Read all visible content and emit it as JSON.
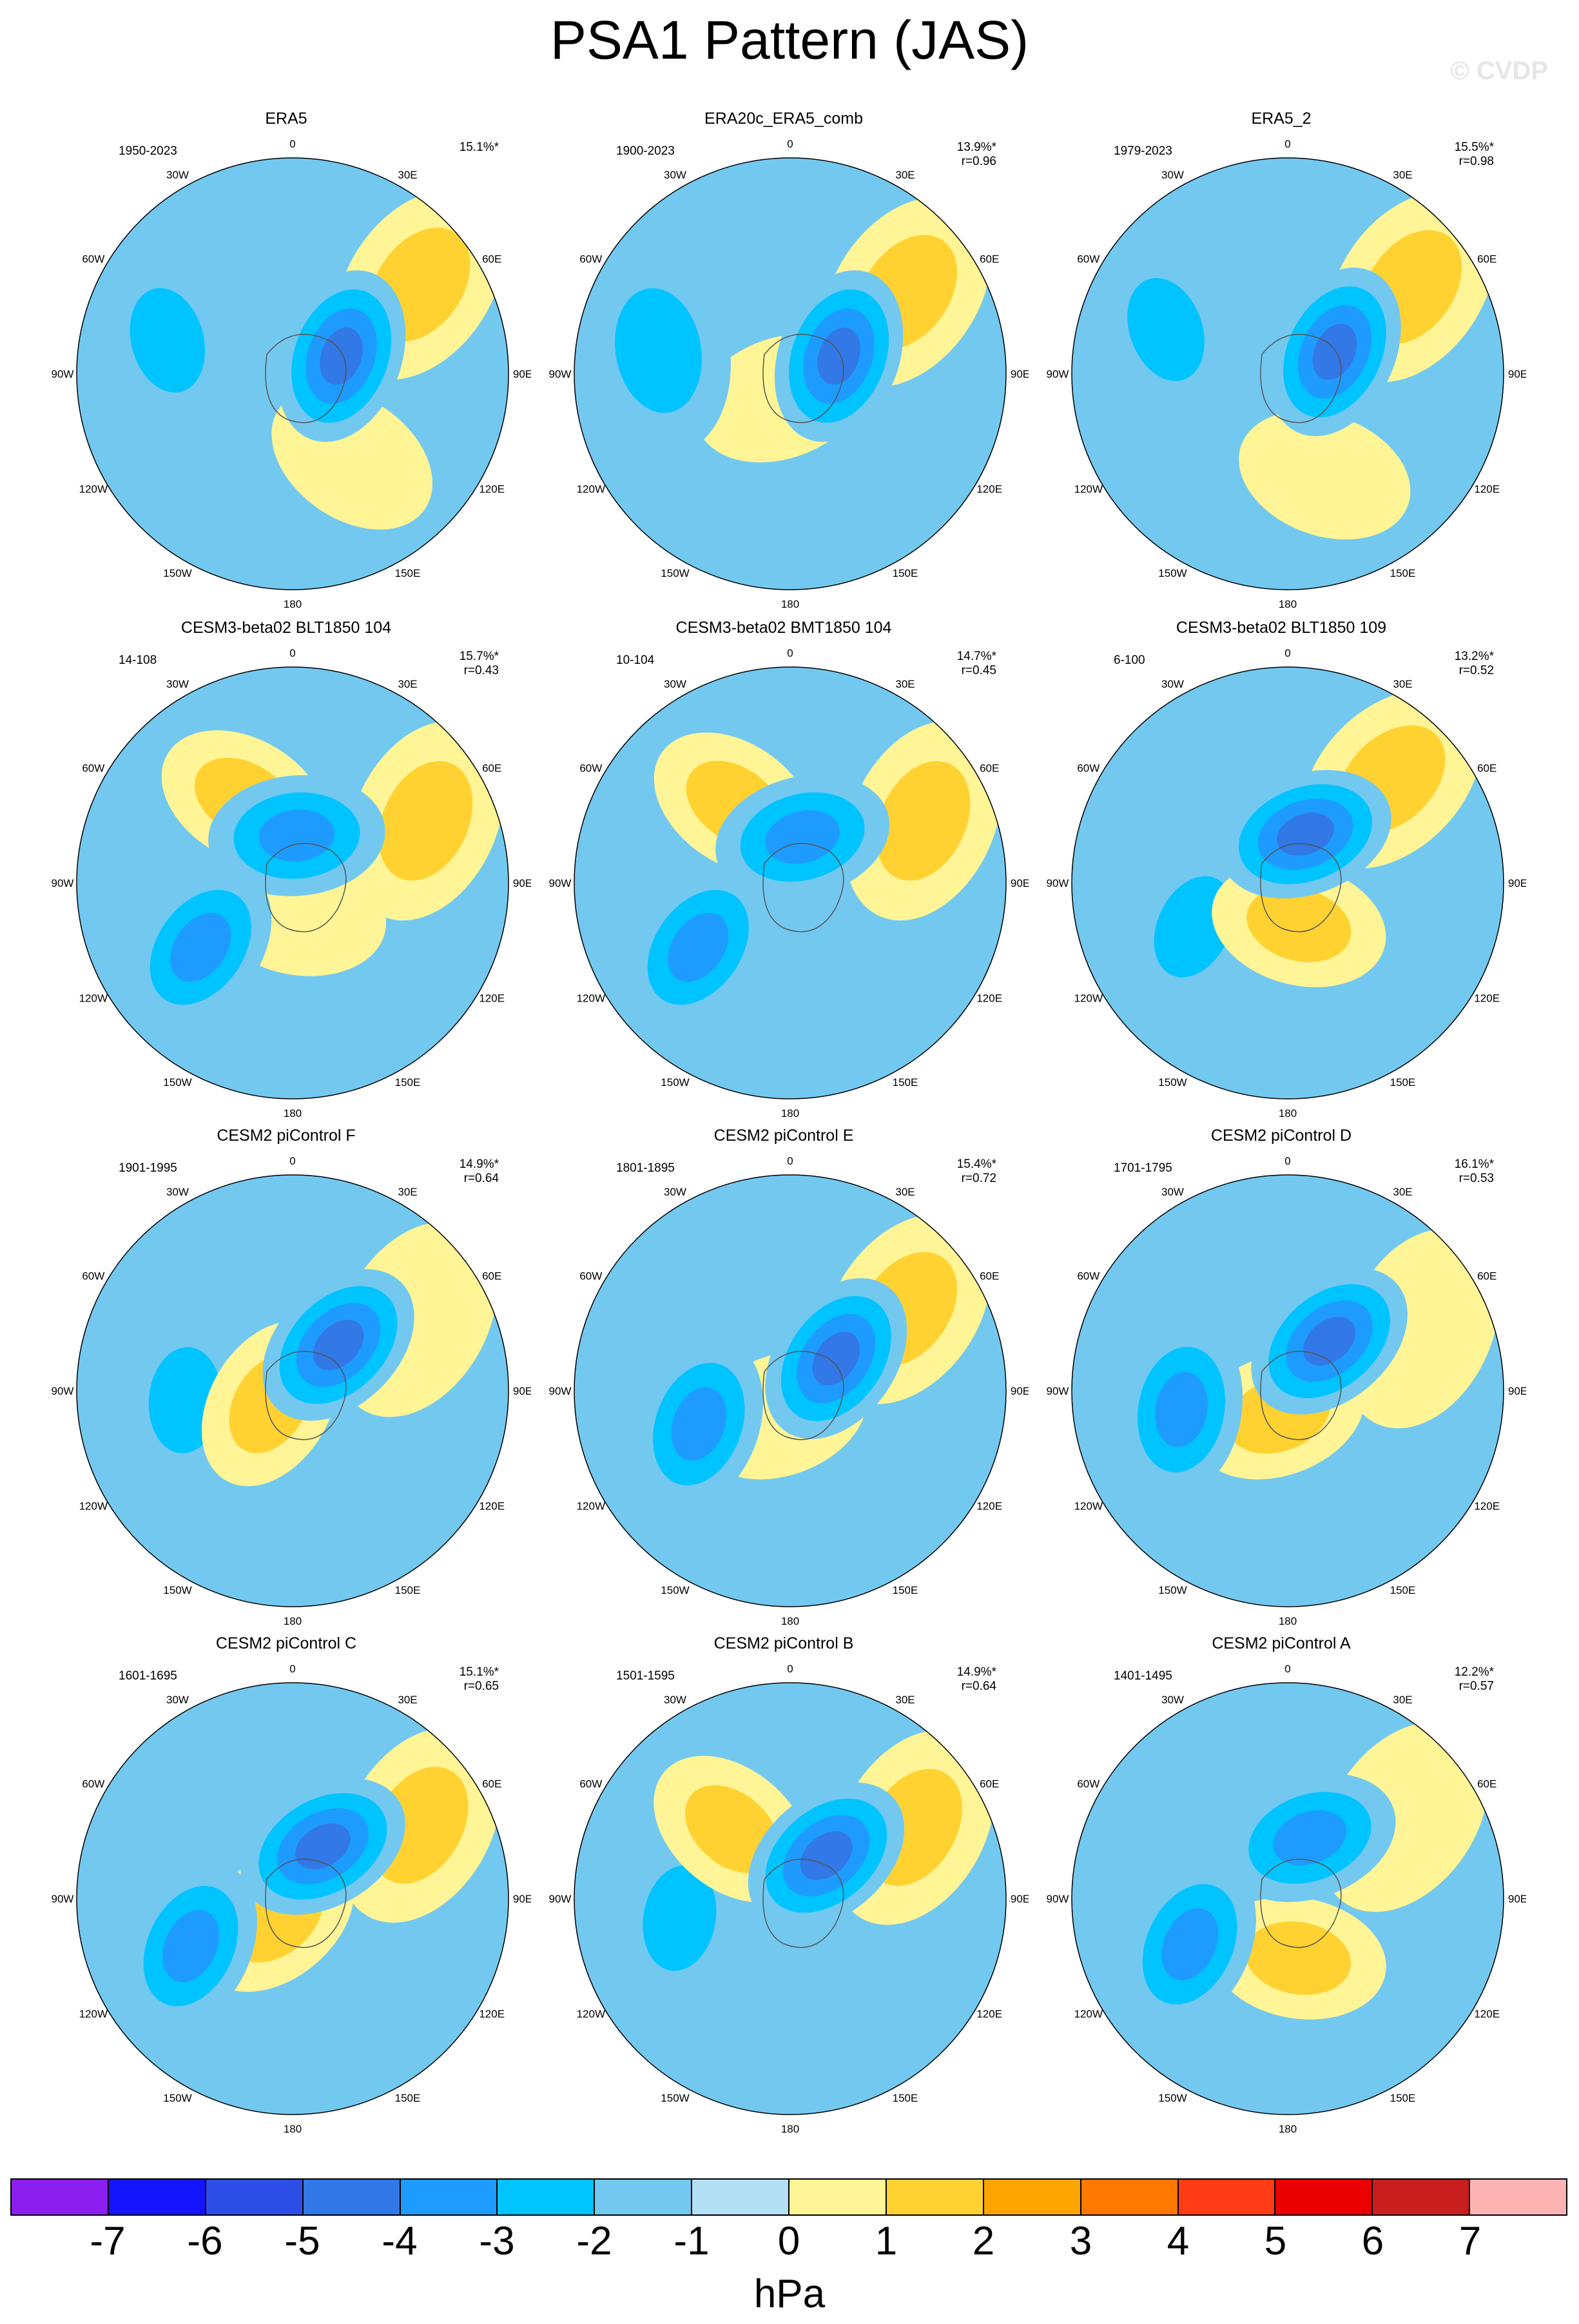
{
  "title": "PSA1 Pattern (JAS)",
  "watermark": "© CVDP",
  "longitude_labels": [
    "0",
    "30E",
    "60E",
    "90E",
    "120E",
    "150E",
    "180",
    "150W",
    "120W",
    "90W",
    "60W",
    "30W"
  ],
  "panels": [
    {
      "title": "ERA5",
      "period": "1950-2023",
      "variance": "15.1%*",
      "pattern_corr": "",
      "centers": [
        {
          "lon": -110,
          "r": 0.24,
          "v": -4
        },
        {
          "lon": -125,
          "r": 0.72,
          "v": 2
        },
        {
          "lon": 105,
          "r": 0.6,
          "v": -2
        },
        {
          "lon": -35,
          "r": 0.48,
          "v": 1
        }
      ]
    },
    {
      "title": "ERA20c_ERA5_comb",
      "period": "1900-2023",
      "variance": "13.9%*",
      "pattern_corr": "r=0.96",
      "centers": [
        {
          "lon": -110,
          "r": 0.24,
          "v": -4
        },
        {
          "lon": -125,
          "r": 0.66,
          "v": 2
        },
        {
          "lon": 100,
          "r": 0.62,
          "v": -2
        },
        {
          "lon": 20,
          "r": 0.12,
          "v": 1
        }
      ]
    },
    {
      "title": "ERA5_2",
      "period": "1979-2023",
      "variance": "15.5%*",
      "pattern_corr": "r=0.98",
      "centers": [
        {
          "lon": -115,
          "r": 0.24,
          "v": -4
        },
        {
          "lon": -125,
          "r": 0.7,
          "v": 2
        },
        {
          "lon": 110,
          "r": 0.6,
          "v": -2
        },
        {
          "lon": -20,
          "r": 0.5,
          "v": 1
        }
      ]
    },
    {
      "title": "CESM3-beta02 BLT1850 104",
      "period": "14-108",
      "variance": "15.7%*",
      "pattern_corr": "r=0.43",
      "centers": [
        {
          "lon": -175,
          "r": 0.22,
          "v": -3
        },
        {
          "lon": 55,
          "r": 0.52,
          "v": -3
        },
        {
          "lon": -115,
          "r": 0.68,
          "v": 2
        },
        {
          "lon": 150,
          "r": 0.45,
          "v": 2
        },
        {
          "lon": -10,
          "r": 0.15,
          "v": 1
        }
      ]
    },
    {
      "title": "CESM3-beta02 BMT1850 104",
      "period": "10-104",
      "variance": "14.7%*",
      "pattern_corr": "r=0.45",
      "centers": [
        {
          "lon": -165,
          "r": 0.22,
          "v": -3
        },
        {
          "lon": 55,
          "r": 0.52,
          "v": -3
        },
        {
          "lon": -115,
          "r": 0.68,
          "v": 2
        },
        {
          "lon": 145,
          "r": 0.45,
          "v": 2
        }
      ]
    },
    {
      "title": "CESM3-beta02 BLT1850 109",
      "period": "6-100",
      "variance": "13.2%*",
      "pattern_corr": "r=0.52",
      "centers": [
        {
          "lon": -160,
          "r": 0.24,
          "v": -4
        },
        {
          "lon": 65,
          "r": 0.48,
          "v": -2
        },
        {
          "lon": -135,
          "r": 0.68,
          "v": 2
        },
        {
          "lon": -15,
          "r": 0.2,
          "v": 2
        }
      ]
    },
    {
      "title": "CESM2 piControl F",
      "period": "1901-1995",
      "variance": "14.9%*",
      "pattern_corr": "r=0.64",
      "centers": [
        {
          "lon": -135,
          "r": 0.3,
          "v": -4
        },
        {
          "lon": 85,
          "r": 0.5,
          "v": -2
        },
        {
          "lon": -120,
          "r": 0.66,
          "v": 1
        },
        {
          "lon": 60,
          "r": 0.12,
          "v": 2
        }
      ]
    },
    {
      "title": "CESM2 piControl E",
      "period": "1801-1895",
      "variance": "15.4%*",
      "pattern_corr": "r=0.72",
      "centers": [
        {
          "lon": -125,
          "r": 0.26,
          "v": -4
        },
        {
          "lon": 70,
          "r": 0.45,
          "v": -3
        },
        {
          "lon": -125,
          "r": 0.66,
          "v": 2
        },
        {
          "lon": 20,
          "r": 0.12,
          "v": 1
        }
      ]
    },
    {
      "title": "CESM2 piControl D",
      "period": "1701-1795",
      "variance": "16.1%*",
      "pattern_corr": "r=0.53",
      "centers": [
        {
          "lon": -140,
          "r": 0.3,
          "v": -4
        },
        {
          "lon": 80,
          "r": 0.5,
          "v": -3
        },
        {
          "lon": 20,
          "r": 0.12,
          "v": 2
        },
        {
          "lon": -115,
          "r": 0.68,
          "v": 1
        }
      ]
    },
    {
      "title": "CESM2 piControl C",
      "period": "1601-1695",
      "variance": "15.1%*",
      "pattern_corr": "r=0.65",
      "centers": [
        {
          "lon": -150,
          "r": 0.28,
          "v": -4
        },
        {
          "lon": 65,
          "r": 0.52,
          "v": -3
        },
        {
          "lon": -120,
          "r": 0.68,
          "v": 2
        },
        {
          "lon": 40,
          "r": 0.12,
          "v": 2
        }
      ]
    },
    {
      "title": "CESM2 piControl B",
      "period": "1501-1595",
      "variance": "14.9%*",
      "pattern_corr": "r=0.64",
      "centers": [
        {
          "lon": -140,
          "r": 0.26,
          "v": -4
        },
        {
          "lon": 80,
          "r": 0.52,
          "v": -2
        },
        {
          "lon": -120,
          "r": 0.66,
          "v": 2
        },
        {
          "lon": 140,
          "r": 0.42,
          "v": 2
        }
      ]
    },
    {
      "title": "CESM2 piControl A",
      "period": "1401-1495",
      "variance": "12.2%*",
      "pattern_corr": "r=0.57",
      "centers": [
        {
          "lon": -160,
          "r": 0.3,
          "v": -3
        },
        {
          "lon": 65,
          "r": 0.5,
          "v": -3
        },
        {
          "lon": -10,
          "r": 0.28,
          "v": 2
        },
        {
          "lon": -125,
          "r": 0.66,
          "v": 1
        }
      ]
    }
  ],
  "colorbar": {
    "colors": [
      "#8c1ef0",
      "#1414ff",
      "#2d4ee6",
      "#3278e6",
      "#1e9bff",
      "#00c4ff",
      "#73c8f0",
      "#b4e0f5",
      "#fff596",
      "#ffd232",
      "#ffa500",
      "#ff7800",
      "#ff3c14",
      "#eb0000",
      "#c81e1e",
      "#ffb4b4"
    ],
    "labels": [
      "-7",
      "-6",
      "-5",
      "-4",
      "-3",
      "-2",
      "-1",
      "0",
      "1",
      "2",
      "3",
      "4",
      "5",
      "6",
      "7"
    ],
    "unit": "hPa"
  }
}
